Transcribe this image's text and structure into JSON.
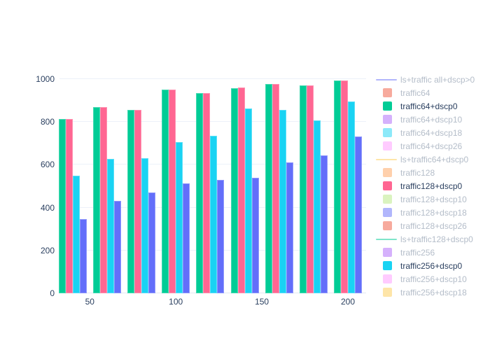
{
  "chart": {
    "background_color": "#ffffff",
    "grid_color": "#ecf1f9",
    "axis_line_color": "#e2e8f2",
    "tick_label_color": "#2a3f5f",
    "active_legend_text_color": "#2a3f5f",
    "muted_legend_text_color": "#b4bdc9"
  },
  "chart_data": {
    "type": "bar",
    "title": "",
    "xlabel": "",
    "ylabel": "",
    "grid": true,
    "legend_position": "right",
    "categories": [
      40,
      60,
      80,
      100,
      120,
      140,
      160,
      180,
      200
    ],
    "x_tick_labels": [
      "50",
      "100",
      "150",
      "200"
    ],
    "x_tick_values": [
      50,
      100,
      150,
      200
    ],
    "y_tick_labels": [
      "0",
      "200",
      "400",
      "600",
      "800",
      "1000"
    ],
    "y_tick_values": [
      0,
      200,
      400,
      600,
      800,
      1000
    ],
    "ylim": [
      0,
      1075
    ],
    "series": [
      {
        "name": "traffic64+dscp0",
        "color": "#00CC96",
        "values": [
          815,
          868,
          857,
          950,
          935,
          958,
          978,
          970,
          993
        ]
      },
      {
        "name": "traffic128+dscp0",
        "color": "#FF6692",
        "values": [
          815,
          868,
          857,
          950,
          935,
          960,
          978,
          970,
          993
        ]
      },
      {
        "name": "traffic256+dscp0",
        "color": "#19D3F3",
        "values": [
          550,
          628,
          632,
          706,
          735,
          862,
          857,
          808,
          895
        ]
      },
      {
        "name": "",
        "color": "#636EFA",
        "values": [
          348,
          432,
          472,
          512,
          530,
          540,
          610,
          645,
          733
        ]
      }
    ]
  },
  "legend": {
    "clipped_at_bottom": true,
    "items": [
      {
        "label": "ls+traffic all+dscp>0",
        "color": "#636EFA",
        "marker": "line",
        "state": "muted"
      },
      {
        "label": "traffic64",
        "color": "#EF553B",
        "marker": "square",
        "state": "muted"
      },
      {
        "label": "traffic64+dscp0",
        "color": "#00CC96",
        "marker": "square",
        "state": "active"
      },
      {
        "label": "traffic64+dscp10",
        "color": "#AB63FA",
        "marker": "square",
        "state": "muted"
      },
      {
        "label": "traffic64+dscp18",
        "color": "#19D3F3",
        "marker": "square",
        "state": "muted"
      },
      {
        "label": "traffic64+dscp26",
        "color": "#FF97FF",
        "marker": "square",
        "state": "muted"
      },
      {
        "label": "ls+traffic64+dscp0",
        "color": "#FECB52",
        "marker": "line",
        "state": "muted"
      },
      {
        "label": "traffic128",
        "color": "#FFA15A",
        "marker": "square",
        "state": "muted"
      },
      {
        "label": "traffic128+dscp0",
        "color": "#FF6692",
        "marker": "square",
        "state": "active"
      },
      {
        "label": "traffic128+dscp10",
        "color": "#B6E880",
        "marker": "square",
        "state": "muted"
      },
      {
        "label": "traffic128+dscp18",
        "color": "#636EFA",
        "marker": "square",
        "state": "muted"
      },
      {
        "label": "traffic128+dscp26",
        "color": "#EF553B",
        "marker": "square",
        "state": "muted"
      },
      {
        "label": "ls+traffic128+dscp0",
        "color": "#00CC96",
        "marker": "line",
        "state": "muted"
      },
      {
        "label": "traffic256",
        "color": "#AB63FA",
        "marker": "square",
        "state": "muted"
      },
      {
        "label": "traffic256+dscp0",
        "color": "#19D3F3",
        "marker": "square",
        "state": "active"
      },
      {
        "label": "traffic256+dscp10",
        "color": "#FF97FF",
        "marker": "square",
        "state": "muted"
      },
      {
        "label": "traffic256+dscp18",
        "color": "#FECB52",
        "marker": "square",
        "state": "muted"
      }
    ]
  }
}
